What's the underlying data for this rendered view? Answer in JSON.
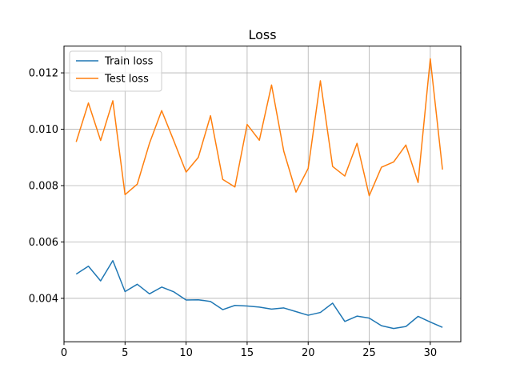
{
  "chart_data": {
    "type": "line",
    "title": "Loss",
    "xlabel": "",
    "ylabel": "",
    "xlim": [
      0,
      32.5
    ],
    "ylim": [
      0.00246,
      0.01295
    ],
    "xticks": [
      0,
      5,
      10,
      15,
      20,
      25,
      30
    ],
    "xtick_labels": [
      "0",
      "5",
      "10",
      "15",
      "20",
      "25",
      "30"
    ],
    "yticks": [
      0.004,
      0.006,
      0.008,
      0.01,
      0.012
    ],
    "ytick_labels": [
      "0.004",
      "0.006",
      "0.008",
      "0.010",
      "0.012"
    ],
    "grid": true,
    "legend_position": "upper-left",
    "x": [
      1,
      2,
      3,
      4,
      5,
      6,
      7,
      8,
      9,
      10,
      11,
      12,
      13,
      14,
      15,
      16,
      17,
      18,
      19,
      20,
      21,
      22,
      23,
      24,
      25,
      26,
      27,
      28,
      29,
      30,
      31
    ],
    "series": [
      {
        "name": "Train loss",
        "color": "#1f77b4",
        "values": [
          0.00486,
          0.00514,
          0.00462,
          0.00534,
          0.00424,
          0.0045,
          0.00416,
          0.0044,
          0.00423,
          0.00394,
          0.00395,
          0.00389,
          0.0036,
          0.00375,
          0.00373,
          0.00369,
          0.00362,
          0.00366,
          0.00353,
          0.0034,
          0.0035,
          0.00383,
          0.00318,
          0.00337,
          0.0033,
          0.00303,
          0.00293,
          0.003,
          0.00336,
          0.00316,
          0.00297
        ]
      },
      {
        "name": "Test loss",
        "color": "#ff7f0e",
        "values": [
          0.00955,
          0.01093,
          0.0096,
          0.01101,
          0.00768,
          0.00805,
          0.0095,
          0.01066,
          0.00958,
          0.00848,
          0.009,
          0.01048,
          0.00822,
          0.00795,
          0.01017,
          0.00961,
          0.01157,
          0.00922,
          0.00777,
          0.00861,
          0.01172,
          0.00868,
          0.00834,
          0.0095,
          0.00764,
          0.00865,
          0.00884,
          0.00944,
          0.00811,
          0.0125,
          0.00857
        ]
      }
    ]
  }
}
